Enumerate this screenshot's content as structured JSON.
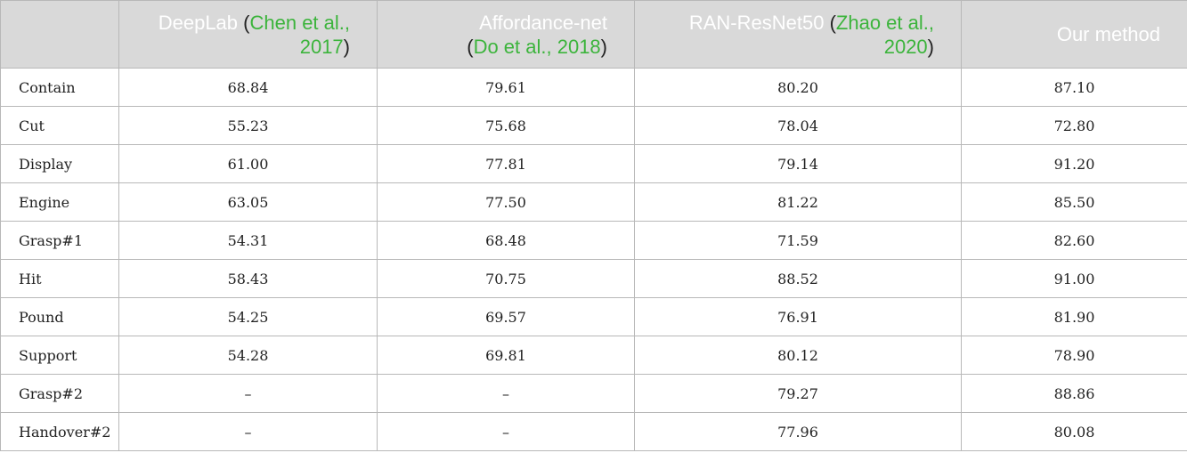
{
  "columns": [
    {
      "name": "",
      "cite": "",
      "name2": ""
    },
    {
      "name": "DeepLab",
      "cite": "Chen et al., 2017",
      "name2": ""
    },
    {
      "name": "Affordance-net",
      "cite": "Do et al., 2018",
      "name2": ""
    },
    {
      "name": "RAN-ResNet50",
      "cite": "Zhao et al., 2020",
      "name2": ""
    },
    {
      "name": "Our method",
      "cite": "",
      "name2": ""
    }
  ],
  "rows": [
    {
      "label": "Contain",
      "deeplab": "68.84",
      "affordance_net": "79.61",
      "ran_resnet50": "80.20",
      "ours": "87.10"
    },
    {
      "label": "Cut",
      "deeplab": "55.23",
      "affordance_net": "75.68",
      "ran_resnet50": "78.04",
      "ours": "72.80"
    },
    {
      "label": "Display",
      "deeplab": "61.00",
      "affordance_net": "77.81",
      "ran_resnet50": "79.14",
      "ours": "91.20"
    },
    {
      "label": "Engine",
      "deeplab": "63.05",
      "affordance_net": "77.50",
      "ran_resnet50": "81.22",
      "ours": "85.50"
    },
    {
      "label": "Grasp#1",
      "deeplab": "54.31",
      "affordance_net": "68.48",
      "ran_resnet50": "71.59",
      "ours": "82.60"
    },
    {
      "label": "Hit",
      "deeplab": "58.43",
      "affordance_net": "70.75",
      "ran_resnet50": "88.52",
      "ours": "91.00"
    },
    {
      "label": "Pound",
      "deeplab": "54.25",
      "affordance_net": "69.57",
      "ran_resnet50": "76.91",
      "ours": "81.90"
    },
    {
      "label": "Support",
      "deeplab": "54.28",
      "affordance_net": "69.81",
      "ran_resnet50": "80.12",
      "ours": "78.90"
    },
    {
      "label": "Grasp#2",
      "deeplab": "–",
      "affordance_net": "–",
      "ran_resnet50": "79.27",
      "ours": "88.86"
    },
    {
      "label": "Handover#2",
      "deeplab": "–",
      "affordance_net": "–",
      "ran_resnet50": "77.96",
      "ours": "80.08"
    }
  ],
  "colors": {
    "header_bg": "#d9d9d9",
    "header_text": "#ffffff",
    "citation": "#3cb43c",
    "border": "#b8b8b8"
  }
}
